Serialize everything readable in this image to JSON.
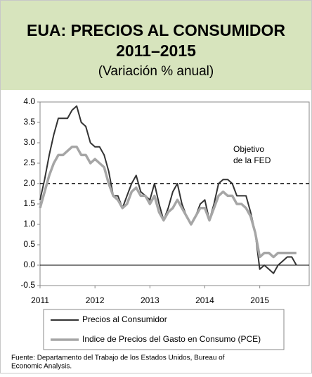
{
  "chart_data": {
    "type": "line",
    "title": [
      "EUA: PRECIOS AL CONSUMIDOR",
      "2011–2015"
    ],
    "subtitle": "(Variación % anual)",
    "x": [
      2011.0,
      2011.083,
      2011.167,
      2011.25,
      2011.333,
      2011.417,
      2011.5,
      2011.583,
      2011.667,
      2011.75,
      2011.833,
      2011.917,
      2012.0,
      2012.083,
      2012.167,
      2012.25,
      2012.333,
      2012.417,
      2012.5,
      2012.583,
      2012.667,
      2012.75,
      2012.833,
      2012.917,
      2013.0,
      2013.083,
      2013.167,
      2013.25,
      2013.333,
      2013.417,
      2013.5,
      2013.583,
      2013.667,
      2013.75,
      2013.833,
      2013.917,
      2014.0,
      2014.083,
      2014.167,
      2014.25,
      2014.333,
      2014.417,
      2014.5,
      2014.583,
      2014.667,
      2014.75,
      2014.833,
      2014.917,
      2015.0,
      2015.083,
      2015.167,
      2015.25,
      2015.333,
      2015.417,
      2015.5,
      2015.583,
      2015.667
    ],
    "series": [
      {
        "name": "Precios al Consumidor",
        "color": "#333333",
        "values": [
          1.6,
          2.1,
          2.7,
          3.2,
          3.6,
          3.6,
          3.6,
          3.8,
          3.9,
          3.5,
          3.4,
          3.0,
          2.9,
          2.9,
          2.7,
          2.3,
          1.7,
          1.7,
          1.4,
          1.7,
          2.0,
          2.2,
          1.8,
          1.7,
          1.6,
          2.0,
          1.5,
          1.1,
          1.4,
          1.8,
          2.0,
          1.5,
          1.2,
          1.0,
          1.2,
          1.5,
          1.6,
          1.1,
          1.5,
          2.0,
          2.1,
          2.1,
          2.0,
          1.7,
          1.7,
          1.7,
          1.3,
          0.8,
          -0.1,
          0.0,
          -0.1,
          -0.2,
          0.0,
          0.1,
          0.2,
          0.2,
          0.0
        ]
      },
      {
        "name": "Indice de Precios del Gasto en Consumo (PCE)",
        "color": "#a6a6a6",
        "values": [
          1.4,
          1.8,
          2.2,
          2.5,
          2.7,
          2.7,
          2.8,
          2.9,
          2.9,
          2.7,
          2.7,
          2.5,
          2.6,
          2.5,
          2.4,
          2.0,
          1.7,
          1.6,
          1.4,
          1.5,
          1.8,
          1.9,
          1.7,
          1.7,
          1.5,
          1.7,
          1.3,
          1.1,
          1.3,
          1.4,
          1.6,
          1.4,
          1.2,
          1.0,
          1.2,
          1.4,
          1.4,
          1.1,
          1.4,
          1.7,
          1.8,
          1.7,
          1.7,
          1.5,
          1.5,
          1.4,
          1.2,
          0.8,
          0.2,
          0.3,
          0.3,
          0.2,
          0.3,
          0.3,
          0.3,
          0.3,
          0.3
        ]
      }
    ],
    "xlim": [
      2011,
      2015.9
    ],
    "xticks": [
      2011,
      2012,
      2013,
      2014,
      2015
    ],
    "ylim": [
      -0.5,
      4.0
    ],
    "yticks": [
      {
        "value": -0.5,
        "label": "-0.5"
      },
      {
        "value": 0,
        "label": "0.0"
      },
      {
        "value": 0.5,
        "label": "0.5"
      },
      {
        "value": 1,
        "label": "1.0"
      },
      {
        "value": 1.5,
        "label": "1.5"
      },
      {
        "value": 2,
        "label": "2.0"
      },
      {
        "value": 2.5,
        "label": "2.5"
      },
      {
        "value": 3,
        "label": "3.0"
      },
      {
        "value": 3.5,
        "label": "3.5"
      },
      {
        "value": 4,
        "label": "4.0"
      }
    ],
    "reference_line": {
      "value": 2.0,
      "label": [
        "Objetivo",
        "de la FED"
      ]
    },
    "source": [
      "Fuente:  Departamento del Trabajo de los Estados Unidos, Bureau of",
      "Economic Analysis."
    ]
  }
}
